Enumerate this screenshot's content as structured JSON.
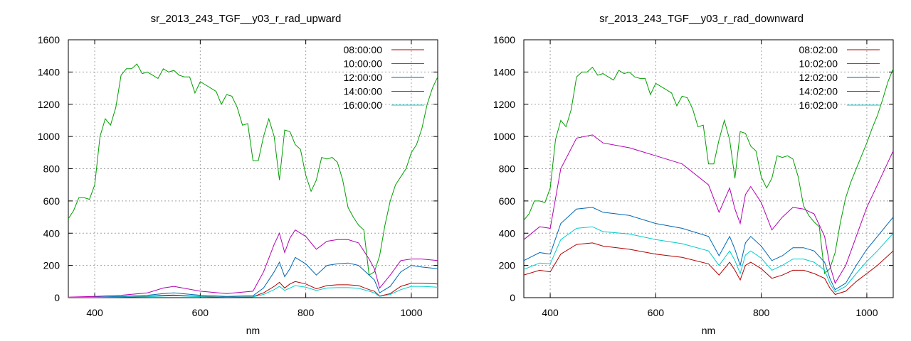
{
  "chart_data": [
    {
      "type": "line",
      "title": "sr_2013_243_TGF__y03_r_rad_upward",
      "xlabel": "nm",
      "ylabel": "",
      "xlim": [
        350,
        1050
      ],
      "ylim": [
        0,
        1600
      ],
      "x_ticks": [
        400,
        600,
        800,
        1000
      ],
      "y_ticks": [
        0,
        200,
        400,
        600,
        800,
        1000,
        1200,
        1400,
        1600
      ],
      "grid": true,
      "legend_position": "top-right",
      "series": [
        {
          "name": "08:00:00",
          "color": "#b30000",
          "x": [
            350,
            400,
            450,
            500,
            530,
            550,
            600,
            650,
            700,
            720,
            740,
            750,
            760,
            770,
            780,
            800,
            820,
            840,
            860,
            880,
            900,
            920,
            930,
            940,
            960,
            980,
            1000,
            1020,
            1050
          ],
          "y": [
            1,
            2,
            4,
            8,
            15,
            16,
            8,
            4,
            6,
            30,
            70,
            95,
            60,
            85,
            100,
            85,
            55,
            75,
            80,
            80,
            75,
            50,
            40,
            10,
            25,
            70,
            90,
            90,
            85
          ]
        },
        {
          "name": "10:00:00",
          "color": "#00a000",
          "x": [
            350,
            360,
            370,
            380,
            390,
            400,
            410,
            420,
            430,
            440,
            450,
            460,
            470,
            480,
            490,
            500,
            510,
            520,
            530,
            540,
            550,
            560,
            570,
            580,
            590,
            600,
            610,
            620,
            630,
            640,
            650,
            660,
            670,
            680,
            690,
            700,
            710,
            720,
            730,
            740,
            750,
            760,
            770,
            780,
            790,
            800,
            810,
            820,
            830,
            840,
            850,
            860,
            870,
            880,
            890,
            900,
            910,
            920,
            930,
            940,
            950,
            960,
            970,
            980,
            990,
            1000,
            1010,
            1020,
            1030,
            1040,
            1050
          ],
          "y": [
            490,
            540,
            620,
            620,
            610,
            700,
            1000,
            1110,
            1070,
            1180,
            1380,
            1420,
            1420,
            1450,
            1390,
            1400,
            1380,
            1360,
            1420,
            1400,
            1410,
            1380,
            1370,
            1370,
            1270,
            1340,
            1320,
            1300,
            1280,
            1200,
            1260,
            1250,
            1180,
            1070,
            1080,
            850,
            850,
            1000,
            1110,
            1000,
            730,
            1040,
            1030,
            950,
            920,
            760,
            660,
            730,
            870,
            860,
            870,
            840,
            730,
            560,
            500,
            450,
            420,
            140,
            160,
            260,
            450,
            600,
            700,
            750,
            800,
            900,
            950,
            1050,
            1200,
            1300,
            1370
          ]
        },
        {
          "name": "12:00:00",
          "color": "#0066b3",
          "x": [
            350,
            400,
            450,
            500,
            530,
            550,
            600,
            650,
            700,
            720,
            740,
            750,
            760,
            770,
            780,
            800,
            820,
            840,
            860,
            880,
            900,
            920,
            930,
            940,
            960,
            980,
            1000,
            1020,
            1050
          ],
          "y": [
            2,
            4,
            8,
            15,
            25,
            30,
            15,
            8,
            12,
            60,
            160,
            220,
            130,
            180,
            250,
            210,
            140,
            200,
            210,
            215,
            200,
            140,
            110,
            30,
            70,
            160,
            200,
            190,
            180
          ]
        },
        {
          "name": "14:00:00",
          "color": "#b300b3",
          "x": [
            350,
            400,
            450,
            500,
            530,
            550,
            600,
            650,
            700,
            720,
            740,
            750,
            760,
            770,
            780,
            800,
            820,
            840,
            860,
            880,
            900,
            920,
            930,
            940,
            960,
            980,
            1000,
            1020,
            1050
          ],
          "y": [
            3,
            8,
            15,
            30,
            60,
            70,
            40,
            25,
            40,
            160,
            330,
            400,
            280,
            370,
            420,
            380,
            300,
            350,
            360,
            360,
            340,
            240,
            180,
            60,
            140,
            230,
            240,
            240,
            230
          ]
        },
        {
          "name": "16:00:00",
          "color": "#00cccc",
          "x": [
            350,
            400,
            450,
            500,
            530,
            550,
            600,
            650,
            700,
            720,
            740,
            750,
            760,
            770,
            780,
            800,
            820,
            840,
            860,
            880,
            900,
            920,
            930,
            940,
            960,
            980,
            1000,
            1020,
            1050
          ],
          "y": [
            1,
            2,
            4,
            6,
            10,
            12,
            6,
            3,
            5,
            20,
            50,
            70,
            45,
            60,
            75,
            65,
            45,
            60,
            62,
            62,
            58,
            40,
            30,
            8,
            20,
            50,
            70,
            70,
            65
          ]
        }
      ]
    },
    {
      "type": "line",
      "title": "sr_2013_243_TGF__y03_r_rad_downward",
      "xlabel": "nm",
      "ylabel": "",
      "xlim": [
        350,
        1050
      ],
      "ylim": [
        0,
        1600
      ],
      "x_ticks": [
        400,
        600,
        800,
        1000
      ],
      "y_ticks": [
        0,
        200,
        400,
        600,
        800,
        1000,
        1200,
        1400,
        1600
      ],
      "grid": true,
      "legend_position": "top-right",
      "series": [
        {
          "name": "08:02:00",
          "color": "#b30000",
          "x": [
            350,
            380,
            400,
            420,
            450,
            480,
            500,
            550,
            600,
            650,
            700,
            720,
            740,
            750,
            760,
            770,
            780,
            800,
            820,
            840,
            860,
            880,
            900,
            920,
            930,
            940,
            960,
            980,
            1000,
            1020,
            1050
          ],
          "y": [
            140,
            170,
            160,
            270,
            330,
            340,
            320,
            300,
            270,
            250,
            210,
            140,
            220,
            170,
            110,
            200,
            220,
            180,
            120,
            140,
            170,
            170,
            150,
            120,
            60,
            20,
            40,
            100,
            150,
            200,
            290
          ]
        },
        {
          "name": "10:02:00",
          "color": "#00a000",
          "x": [
            350,
            360,
            370,
            380,
            390,
            400,
            410,
            420,
            430,
            440,
            450,
            460,
            470,
            480,
            490,
            500,
            510,
            520,
            530,
            540,
            550,
            560,
            570,
            580,
            590,
            600,
            610,
            620,
            630,
            640,
            650,
            660,
            670,
            680,
            690,
            700,
            710,
            720,
            730,
            740,
            750,
            760,
            770,
            780,
            790,
            800,
            810,
            820,
            830,
            840,
            850,
            860,
            870,
            880,
            890,
            900,
            910,
            920,
            930,
            940,
            950,
            960,
            970,
            980,
            990,
            1000,
            1010,
            1020,
            1030,
            1040,
            1050
          ],
          "y": [
            480,
            520,
            600,
            600,
            590,
            680,
            980,
            1100,
            1060,
            1170,
            1370,
            1400,
            1400,
            1430,
            1380,
            1390,
            1370,
            1350,
            1410,
            1390,
            1400,
            1370,
            1360,
            1360,
            1260,
            1330,
            1310,
            1290,
            1270,
            1190,
            1250,
            1240,
            1170,
            1060,
            1070,
            830,
            830,
            980,
            1100,
            980,
            740,
            1030,
            1020,
            940,
            910,
            750,
            680,
            740,
            880,
            870,
            880,
            860,
            750,
            570,
            510,
            470,
            440,
            150,
            180,
            280,
            470,
            620,
            720,
            800,
            880,
            960,
            1050,
            1130,
            1230,
            1340,
            1420
          ]
        },
        {
          "name": "12:02:00",
          "color": "#0066b3",
          "x": [
            350,
            380,
            400,
            420,
            450,
            480,
            500,
            550,
            600,
            650,
            700,
            720,
            740,
            750,
            760,
            770,
            780,
            800,
            820,
            840,
            860,
            880,
            900,
            920,
            930,
            940,
            960,
            980,
            1000,
            1020,
            1050
          ],
          "y": [
            230,
            280,
            270,
            460,
            550,
            560,
            530,
            510,
            460,
            430,
            380,
            260,
            380,
            300,
            200,
            340,
            380,
            320,
            230,
            260,
            310,
            310,
            290,
            220,
            120,
            50,
            90,
            200,
            300,
            380,
            500
          ]
        },
        {
          "name": "14:02:00",
          "color": "#b300b3",
          "x": [
            350,
            380,
            400,
            420,
            450,
            480,
            500,
            550,
            600,
            650,
            700,
            720,
            740,
            750,
            760,
            770,
            780,
            800,
            820,
            840,
            860,
            880,
            900,
            920,
            930,
            940,
            960,
            980,
            1000,
            1020,
            1050
          ],
          "y": [
            360,
            440,
            430,
            800,
            990,
            1010,
            960,
            930,
            880,
            830,
            700,
            530,
            680,
            550,
            460,
            640,
            690,
            590,
            420,
            500,
            560,
            550,
            520,
            380,
            200,
            90,
            200,
            380,
            560,
            700,
            910
          ]
        },
        {
          "name": "16:02:00",
          "color": "#00cccc",
          "x": [
            350,
            380,
            400,
            420,
            450,
            480,
            500,
            550,
            600,
            650,
            700,
            720,
            740,
            750,
            760,
            770,
            780,
            800,
            820,
            840,
            860,
            880,
            900,
            920,
            930,
            940,
            960,
            980,
            1000,
            1020,
            1050
          ],
          "y": [
            175,
            215,
            210,
            360,
            430,
            440,
            410,
            395,
            360,
            335,
            290,
            200,
            290,
            230,
            150,
            265,
            290,
            245,
            170,
            200,
            240,
            240,
            220,
            170,
            90,
            35,
            70,
            150,
            225,
            290,
            400
          ]
        }
      ]
    }
  ]
}
